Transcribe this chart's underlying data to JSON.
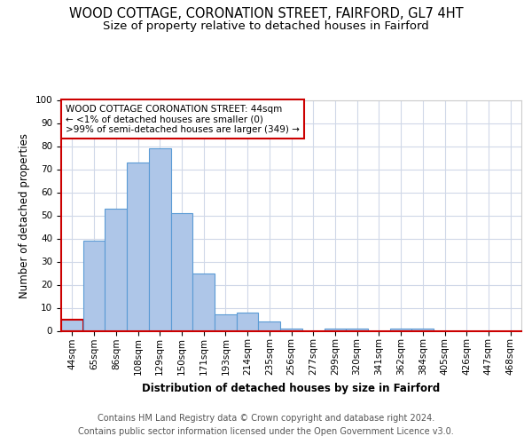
{
  "title": "WOOD COTTAGE, CORONATION STREET, FAIRFORD, GL7 4HT",
  "subtitle": "Size of property relative to detached houses in Fairford",
  "xlabel": "Distribution of detached houses by size in Fairford",
  "ylabel": "Number of detached properties",
  "categories": [
    "44sqm",
    "65sqm",
    "86sqm",
    "108sqm",
    "129sqm",
    "150sqm",
    "171sqm",
    "193sqm",
    "214sqm",
    "235sqm",
    "256sqm",
    "277sqm",
    "299sqm",
    "320sqm",
    "341sqm",
    "362sqm",
    "384sqm",
    "405sqm",
    "426sqm",
    "447sqm",
    "468sqm"
  ],
  "values": [
    5,
    39,
    53,
    73,
    79,
    51,
    25,
    7,
    8,
    4,
    1,
    0,
    1,
    1,
    0,
    1,
    1,
    0,
    0,
    0,
    0
  ],
  "bar_color": "#aec6e8",
  "bar_edge_color": "#5b9bd5",
  "highlight_bar_index": 0,
  "highlight_bar_edge_color": "#cc0000",
  "annotation_text": "WOOD COTTAGE CORONATION STREET: 44sqm\n← <1% of detached houses are smaller (0)\n>99% of semi-detached houses are larger (349) →",
  "annotation_box_edge_color": "#cc0000",
  "footer_line1": "Contains HM Land Registry data © Crown copyright and database right 2024.",
  "footer_line2": "Contains public sector information licensed under the Open Government Licence v3.0.",
  "ylim": [
    0,
    100
  ],
  "yticks": [
    0,
    10,
    20,
    30,
    40,
    50,
    60,
    70,
    80,
    90,
    100
  ],
  "background_color": "#ffffff",
  "grid_color": "#d0d8e8",
  "title_fontsize": 10.5,
  "subtitle_fontsize": 9.5,
  "axis_label_fontsize": 8.5,
  "tick_fontsize": 7.5,
  "annotation_fontsize": 7.5,
  "footer_fontsize": 7.0
}
